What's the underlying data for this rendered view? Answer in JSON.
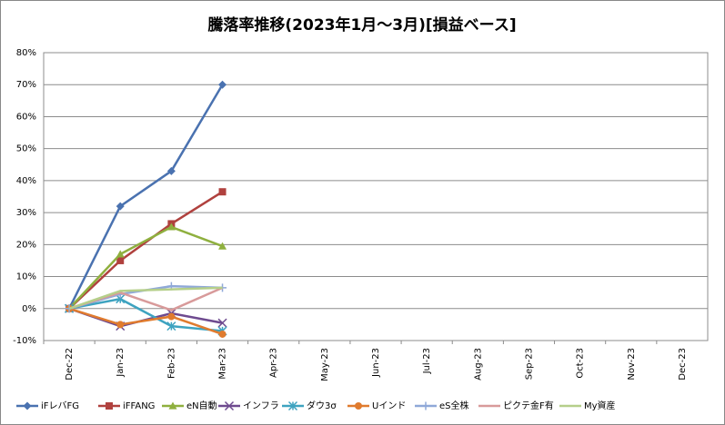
{
  "chart_data": {
    "type": "line",
    "title": "騰落率推移(2023年1月～3月)[損益ベース]",
    "categories": [
      "Dec-22",
      "Jan-23",
      "Feb-23",
      "Mar-23",
      "Apr-23",
      "May-23",
      "Jun-23",
      "Jul-23",
      "Aug-23",
      "Sep-23",
      "Oct-23",
      "Nov-23",
      "Dec-23"
    ],
    "series": [
      {
        "name": "iFレバFG",
        "color": "#4a72b0",
        "marker": "diamond",
        "values": [
          0,
          32,
          43,
          70,
          null,
          null,
          null,
          null,
          null,
          null,
          null,
          null,
          null
        ]
      },
      {
        "name": "iFFANG",
        "color": "#b0413e",
        "marker": "square",
        "values": [
          0,
          15,
          26.5,
          36.5,
          null,
          null,
          null,
          null,
          null,
          null,
          null,
          null,
          null
        ]
      },
      {
        "name": "eN自動",
        "color": "#8fb03f",
        "marker": "triangle",
        "values": [
          0,
          17,
          25.5,
          19.5,
          null,
          null,
          null,
          null,
          null,
          null,
          null,
          null,
          null
        ]
      },
      {
        "name": "インフラ",
        "color": "#6e4a8f",
        "marker": "x",
        "values": [
          0,
          -5.5,
          -1.5,
          -4.5,
          null,
          null,
          null,
          null,
          null,
          null,
          null,
          null,
          null
        ]
      },
      {
        "name": "ダウ3σ",
        "color": "#3ea3c0",
        "marker": "star",
        "values": [
          0,
          3,
          -5.5,
          -7,
          null,
          null,
          null,
          null,
          null,
          null,
          null,
          null,
          null
        ]
      },
      {
        "name": "Uインド",
        "color": "#e07b2e",
        "marker": "circle",
        "values": [
          0,
          -5,
          -2.5,
          -8,
          null,
          null,
          null,
          null,
          null,
          null,
          null,
          null,
          null
        ]
      },
      {
        "name": "eS全株",
        "color": "#8fa8d8",
        "marker": "plus",
        "values": [
          0,
          4.5,
          7,
          6.5,
          null,
          null,
          null,
          null,
          null,
          null,
          null,
          null,
          null
        ]
      },
      {
        "name": "ピクテ金F有",
        "color": "#d89a9a",
        "marker": "none",
        "values": [
          0,
          5,
          -0.5,
          6.5,
          null,
          null,
          null,
          null,
          null,
          null,
          null,
          null,
          null
        ]
      },
      {
        "name": "My資産",
        "color": "#b5cf8a",
        "marker": "none",
        "values": [
          0,
          5.5,
          6,
          6.5,
          null,
          null,
          null,
          null,
          null,
          null,
          null,
          null,
          null
        ]
      }
    ],
    "ylim": [
      -10,
      80
    ],
    "yticks": [
      {
        "value": -10,
        "label": "-10%"
      },
      {
        "value": 0,
        "label": "0%"
      },
      {
        "value": 10,
        "label": "10%"
      },
      {
        "value": 20,
        "label": "20%"
      },
      {
        "value": 30,
        "label": "30%"
      },
      {
        "value": 40,
        "label": "40%"
      },
      {
        "value": 50,
        "label": "50%"
      },
      {
        "value": 60,
        "label": "60%"
      },
      {
        "value": 70,
        "label": "70%"
      },
      {
        "value": 80,
        "label": "80%"
      }
    ],
    "grid": true
  }
}
